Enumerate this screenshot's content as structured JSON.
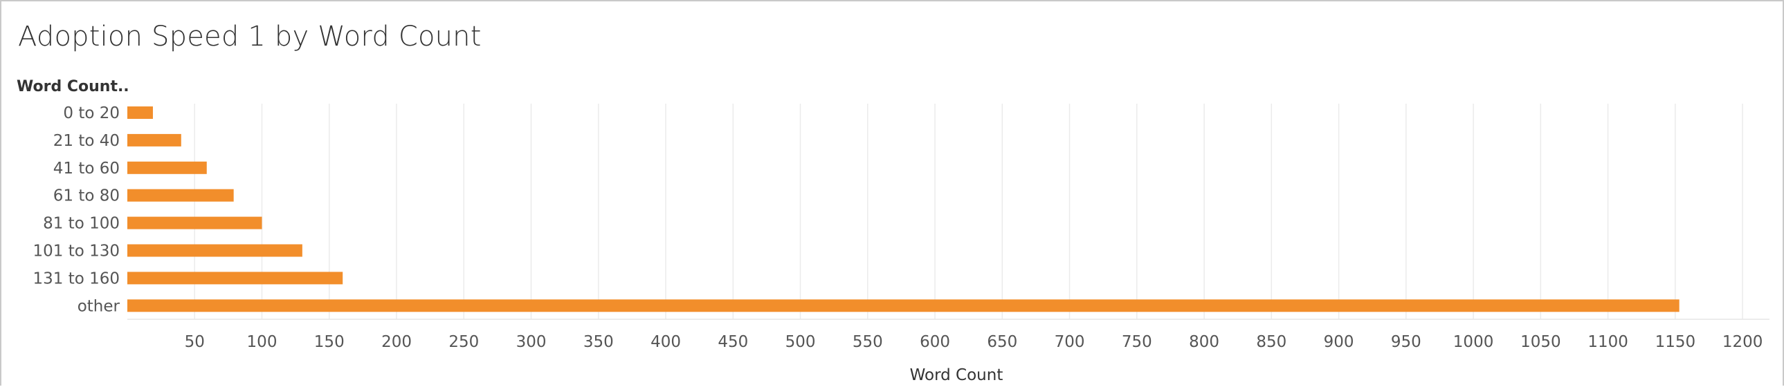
{
  "chart_data": {
    "type": "bar",
    "orientation": "horizontal",
    "title": "Adoption Speed 1 by Word Count",
    "y_header": "Word Count..",
    "xlabel": "Word Count",
    "categories": [
      "0 to 20",
      "21 to 40",
      "41 to 60",
      "61 to 80",
      "81 to 100",
      "101 to 130",
      "131 to 160",
      "other"
    ],
    "values": [
      19,
      40,
      59,
      79,
      100,
      130,
      160,
      1153
    ],
    "xlim": [
      0,
      1220
    ],
    "xticks": [
      50,
      100,
      150,
      200,
      250,
      300,
      350,
      400,
      450,
      500,
      550,
      600,
      650,
      700,
      750,
      800,
      850,
      900,
      950,
      1000,
      1050,
      1100,
      1150,
      1200
    ],
    "grid": true,
    "bar_color": "#f28e2b",
    "grid_color": "#ebebeb"
  }
}
